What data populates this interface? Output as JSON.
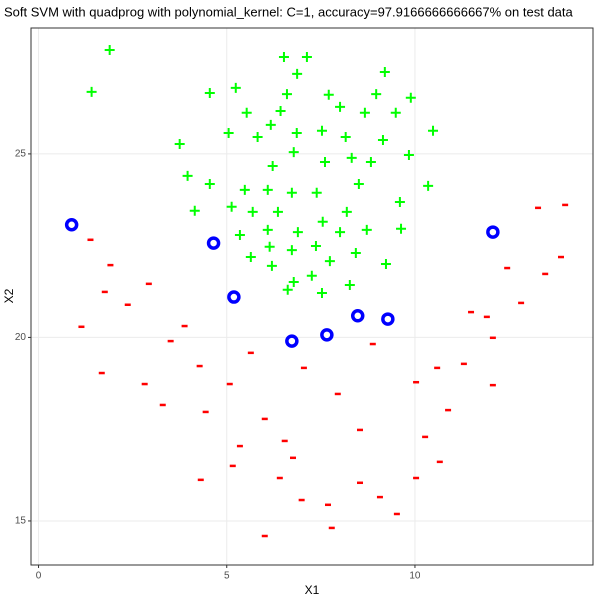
{
  "chart_data": {
    "type": "scatter",
    "title": "Soft SVM with quadprog with polynomial_kernel: C=1, accuracy=97.9166666666667% on test data",
    "x_label": "X1",
    "y_label": "X2",
    "xlim": [
      -0.2,
      14.73
    ],
    "ylim": [
      13.8,
      28.43
    ],
    "xticks": [
      0,
      5,
      10
    ],
    "yticks": [
      15,
      20,
      25
    ],
    "grid": true,
    "series": [
      {
        "color": "#00ff00",
        "marker": "plus",
        "x": [
          1.89,
          1.41,
          7.13,
          6.52,
          6.87,
          9.2,
          9.89,
          5.24,
          4.55,
          6.6,
          8.97,
          7.71,
          5.53,
          6.43,
          8.01,
          9.49,
          8.67,
          5.05,
          6.17,
          7.53,
          10.48,
          3.75,
          6.86,
          5.82,
          8.16,
          9.15,
          6.78,
          8.32,
          9.84,
          6.22,
          7.61,
          8.83,
          3.96,
          4.55,
          5.48,
          6.09,
          6.73,
          7.39,
          8.51,
          10.35,
          4.15,
          5.13,
          5.69,
          6.36,
          8.19,
          9.6,
          7.55,
          6.09,
          6.89,
          8.01,
          8.72,
          5.35,
          7.37,
          6.14,
          6.73,
          8.43,
          5.64,
          7.74,
          9.23,
          6.2,
          7.26,
          6.78,
          8.27,
          7.53,
          6.62,
          9.63
        ],
        "y": [
          27.83,
          26.69,
          27.64,
          27.64,
          27.18,
          27.23,
          26.53,
          26.8,
          26.66,
          26.63,
          26.63,
          26.61,
          26.12,
          26.17,
          26.28,
          26.12,
          26.12,
          25.57,
          25.79,
          25.63,
          25.63,
          25.27,
          25.57,
          25.46,
          25.46,
          25.38,
          25.05,
          24.89,
          24.97,
          24.67,
          24.78,
          24.78,
          24.4,
          24.18,
          24.02,
          24.02,
          23.94,
          23.94,
          24.18,
          24.13,
          23.45,
          23.56,
          23.42,
          23.42,
          23.42,
          23.69,
          23.15,
          22.93,
          22.87,
          22.87,
          22.93,
          22.79,
          22.49,
          22.47,
          22.38,
          22.3,
          22.19,
          22.08,
          22.0,
          21.95,
          21.68,
          21.51,
          21.43,
          21.21,
          21.3,
          22.96
        ]
      },
      {
        "color": "#ff0000",
        "marker": "minus",
        "x": [
          1.38,
          1.91,
          1.76,
          1.14,
          2.93,
          2.37,
          3.88,
          1.68,
          2.82,
          3.51,
          4.28,
          3.3,
          5.08,
          5.64,
          4.44,
          6.01,
          5.35,
          6.54,
          5.16,
          4.31,
          6.41,
          6.76,
          6.99,
          7.79,
          6.01,
          7.69,
          9.07,
          8.54,
          9.52,
          10.03,
          10.66,
          10.88,
          10.27,
          10.03,
          10.59,
          11.3,
          12.07,
          12.07,
          11.49,
          11.91,
          12.45,
          12.82,
          13.27,
          13.88,
          13.99,
          13.46,
          8.88,
          7.05,
          7.95,
          8.54
        ],
        "y": [
          22.66,
          21.97,
          21.24,
          20.29,
          21.46,
          20.89,
          20.31,
          19.03,
          18.73,
          19.9,
          19.22,
          18.16,
          18.73,
          19.58,
          17.97,
          17.78,
          17.04,
          17.18,
          16.5,
          16.12,
          16.17,
          16.72,
          15.57,
          14.81,
          14.59,
          15.44,
          15.65,
          16.04,
          15.19,
          16.17,
          16.61,
          18.02,
          17.29,
          18.78,
          19.17,
          19.28,
          18.7,
          19.99,
          20.69,
          20.56,
          21.89,
          20.94,
          23.53,
          22.19,
          23.61,
          21.73,
          19.82,
          19.17,
          18.46,
          17.48
        ]
      },
      {
        "color": "#0000ff",
        "marker": "circle",
        "x": [
          0.88,
          4.65,
          5.19,
          6.73,
          7.66,
          8.48,
          9.28,
          12.07
        ],
        "y": [
          23.07,
          22.57,
          21.1,
          19.9,
          20.07,
          20.59,
          20.5,
          22.87
        ]
      }
    ]
  }
}
